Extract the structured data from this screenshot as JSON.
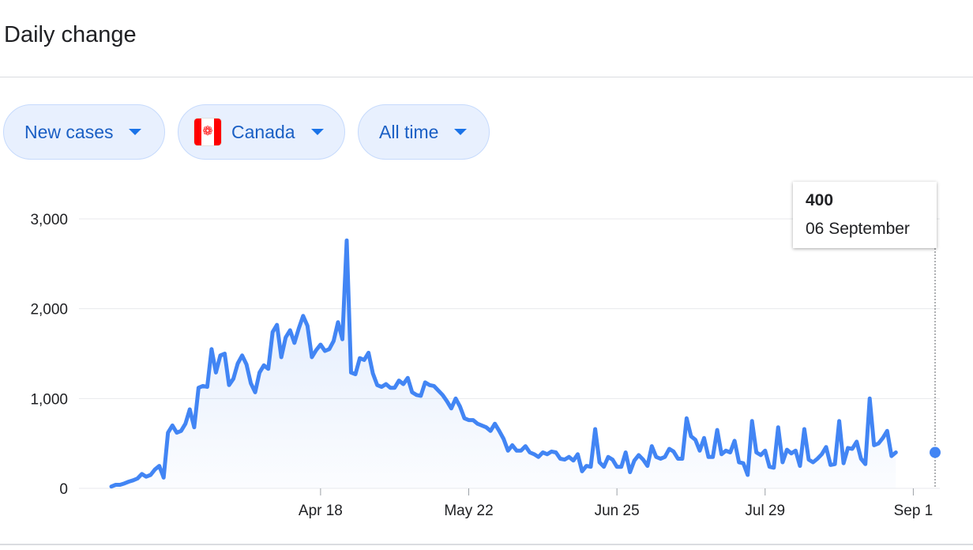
{
  "header": {
    "title": "Daily change"
  },
  "filters": {
    "metric": {
      "label": "New cases",
      "icon": "dropdown-caret-icon"
    },
    "region": {
      "label": "Canada",
      "icon": "canada-flag-icon"
    },
    "range": {
      "label": "All time",
      "icon": "dropdown-caret-icon"
    }
  },
  "colors": {
    "line": "#4285f4",
    "chip_bg": "#e8f0fe",
    "chip_text": "#1a5fc4",
    "grid": "#e8eaed"
  },
  "tooltip": {
    "value": "400",
    "date": "06 September"
  },
  "chart_data": {
    "type": "area",
    "title": "",
    "xlabel": "",
    "ylabel": "",
    "ylim": [
      0,
      3000
    ],
    "yticks": [
      0,
      1000,
      2000,
      3000
    ],
    "ytick_labels": [
      "0",
      "1,000",
      "2,000",
      "3,000"
    ],
    "xlim": [
      "2020-03-01",
      "2020-09-06"
    ],
    "xticks": [
      {
        "label": "Apr 18",
        "date": "2020-04-18"
      },
      {
        "label": "May 22",
        "date": "2020-05-22"
      },
      {
        "label": "Jun 25",
        "date": "2020-06-25"
      },
      {
        "label": "Jul 29",
        "date": "2020-07-29"
      },
      {
        "label": "Sep 1",
        "date": "2020-09-01"
      }
    ],
    "grid": true,
    "highlight": {
      "date": "2020-09-06",
      "value": 400
    },
    "series": [
      {
        "start_date": "2020-03-01",
        "values": [
          20,
          40,
          40,
          55,
          75,
          90,
          110,
          160,
          130,
          150,
          210,
          250,
          120,
          620,
          700,
          620,
          640,
          720,
          880,
          680,
          1120,
          1140,
          1130,
          1550,
          1290,
          1480,
          1500,
          1150,
          1220,
          1390,
          1480,
          1380,
          1170,
          1070,
          1290,
          1370,
          1330,
          1740,
          1820,
          1460,
          1680,
          1760,
          1620,
          1780,
          1920,
          1810,
          1460,
          1540,
          1600,
          1530,
          1550,
          1640,
          1850,
          1660,
          2760,
          1290,
          1270,
          1450,
          1430,
          1510,
          1280,
          1150,
          1130,
          1160,
          1120,
          1120,
          1200,
          1160,
          1230,
          1070,
          1040,
          1030,
          1180,
          1150,
          1140,
          1090,
          1040,
          970,
          890,
          1000,
          910,
          780,
          760,
          760,
          720,
          700,
          680,
          640,
          720,
          640,
          550,
          420,
          480,
          420,
          420,
          470,
          400,
          380,
          350,
          400,
          380,
          410,
          400,
          330,
          320,
          350,
          310,
          380,
          190,
          250,
          240,
          660,
          290,
          240,
          350,
          320,
          240,
          240,
          400,
          180,
          310,
          370,
          320,
          250,
          470,
          350,
          330,
          350,
          440,
          410,
          330,
          330,
          780,
          580,
          540,
          420,
          560,
          350,
          350,
          650,
          380,
          420,
          400,
          530,
          290,
          280,
          150,
          750,
          400,
          370,
          420,
          240,
          230,
          680,
          290,
          430,
          390,
          420,
          250,
          660,
          320,
          290,
          330,
          380,
          460,
          260,
          270,
          750,
          280,
          450,
          440,
          520,
          330,
          270,
          1000,
          480,
          500,
          560,
          640,
          360,
          400
        ]
      }
    ]
  }
}
